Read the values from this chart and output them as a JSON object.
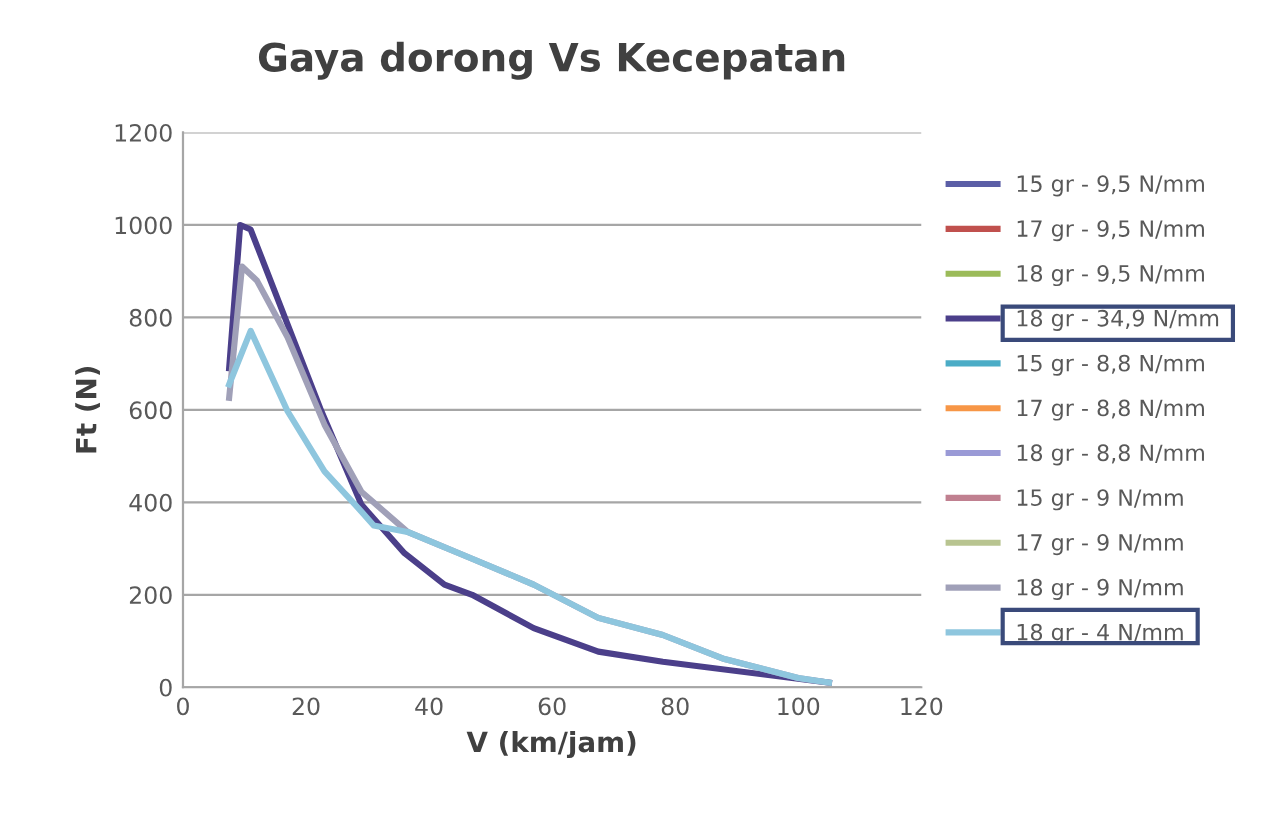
{
  "chart_data": {
    "type": "line",
    "title": "Gaya dorong Vs Kecepatan",
    "xlabel": "V (km/jam)",
    "ylabel": "Ft (N)",
    "xlim": [
      0,
      120
    ],
    "xticks": [
      0,
      20,
      40,
      60,
      80,
      100,
      120
    ],
    "ylim": [
      0,
      1200
    ],
    "yticks": [
      0,
      200,
      400,
      600,
      800,
      1000,
      1200
    ],
    "grid": "y",
    "legend": "right",
    "marker": "none",
    "line_style": "solid",
    "series": [
      {
        "name": "15 gr - 9,5 N/mm",
        "color": "#5b5ea6"
      },
      {
        "name": "17 gr - 9,5 N/mm",
        "color": "#c0504d"
      },
      {
        "name": "18 gr - 9,5 N/mm",
        "color": "#9bbb59"
      },
      {
        "name": "18 gr - 34,9 N/mm",
        "color": "#4b3f8a",
        "x": [
          7.5,
          9.3,
          11,
          17,
          22.5,
          29,
          31,
          36,
          42.5,
          47,
          57,
          67.5,
          78,
          99,
          105
        ],
        "values": [
          690,
          1000,
          990,
          785,
          597,
          395,
          365,
          290,
          222,
          200,
          128,
          77,
          55,
          20,
          10
        ]
      },
      {
        "name": "15 gr - 8,8 N/mm",
        "color": "#4bacc6"
      },
      {
        "name": "17 gr - 8,8 N/mm",
        "color": "#f79646"
      },
      {
        "name": "18 gr - 8,8 N/mm",
        "color": "#9a9ad6"
      },
      {
        "name": "15 gr - 9 N/mm",
        "color": "#c08090"
      },
      {
        "name": "17 gr - 9 N/mm",
        "color": "#b8c490"
      },
      {
        "name": "18 gr - 9 N/mm",
        "color": "#a0a0b8",
        "x": [
          7.5,
          9.6,
          12,
          17,
          23,
          29,
          36.5,
          47,
          57,
          67.5,
          78,
          88,
          100,
          105
        ],
        "values": [
          626,
          910,
          880,
          757,
          568,
          423,
          336,
          278,
          222,
          150,
          113,
          61,
          20,
          10
        ]
      },
      {
        "name": "18 gr - 4 N/mm",
        "color": "#8ec6de",
        "x": [
          7.5,
          11,
          17,
          23,
          29,
          31,
          36.5,
          47,
          57,
          67.5,
          78,
          88,
          100,
          105
        ],
        "values": [
          655,
          771,
          597,
          467,
          380,
          350,
          336,
          278,
          222,
          150,
          113,
          61,
          20,
          10
        ]
      }
    ]
  }
}
